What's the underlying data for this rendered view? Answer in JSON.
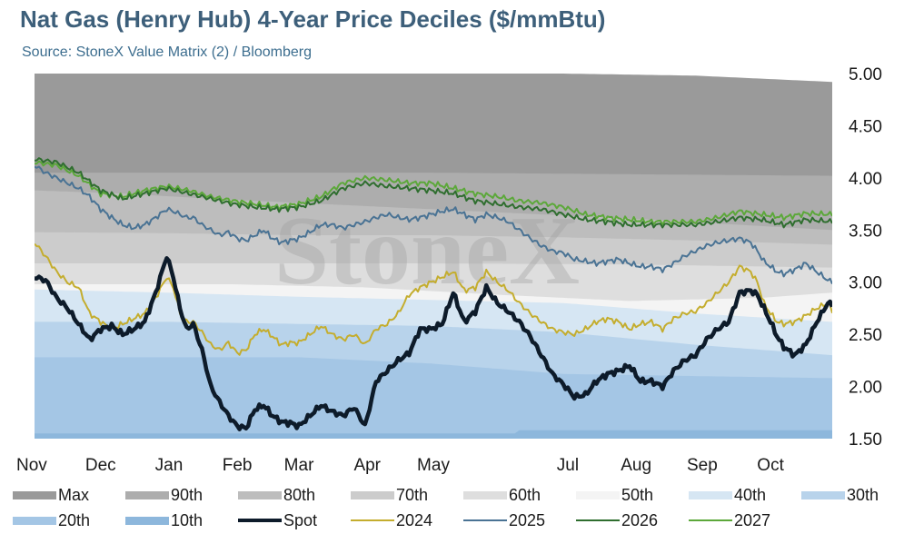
{
  "title": "Nat Gas (Henry Hub) 4-Year Price Deciles ($/mmBtu)",
  "subtitle": "Source: StoneX Value Matrix (2) / Bloomberg",
  "watermark": "StoneX",
  "chart_data": {
    "type": "area",
    "x_type": "day-of-season",
    "categories": [
      "Nov",
      "Dec",
      "Jan",
      "Feb",
      "Mar",
      "Apr",
      "May",
      "Jul",
      "Aug",
      "Sep",
      "Oct"
    ],
    "ylim": [
      1.5,
      5.0
    ],
    "yticks": [
      "5.00",
      "4.50",
      "4.00",
      "3.50",
      "3.00",
      "2.50",
      "2.00",
      "1.50"
    ],
    "y_axis_side": "right",
    "grid": false,
    "legend_position": "bottom",
    "x_days": [
      0,
      30,
      61,
      92,
      120,
      151,
      181,
      242,
      273,
      303,
      334
    ],
    "deciles": [
      {
        "name": "Max",
        "color": "#9a9a9a",
        "x": [
          0,
          60,
          120,
          180,
          240,
          300,
          362
        ],
        "values": [
          5.0,
          5.0,
          5.0,
          5.0,
          5.0,
          4.98,
          4.92
        ]
      },
      {
        "name": "90th",
        "color": "#adadad",
        "x": [
          0,
          60,
          120,
          180,
          240,
          300,
          362
        ],
        "values": [
          4.05,
          4.05,
          4.05,
          4.05,
          4.04,
          4.03,
          4.02
        ]
      },
      {
        "name": "80th",
        "color": "#bdbdbd",
        "x": [
          0,
          40,
          80,
          120,
          160,
          200,
          240,
          280,
          320,
          362
        ],
        "values": [
          3.88,
          3.85,
          3.8,
          3.76,
          3.72,
          3.68,
          3.64,
          3.6,
          3.55,
          3.5
        ]
      },
      {
        "name": "70th",
        "color": "#cccccc",
        "x": [
          0,
          60,
          120,
          180,
          240,
          300,
          362
        ],
        "values": [
          3.48,
          3.47,
          3.45,
          3.45,
          3.43,
          3.4,
          3.36
        ]
      },
      {
        "name": "60th",
        "color": "#dedede",
        "x": [
          0,
          90,
          180,
          270,
          362
        ],
        "values": [
          3.18,
          3.18,
          3.18,
          3.17,
          3.14
        ]
      },
      {
        "name": "50th",
        "color": "#f4f4f4",
        "x": [
          0,
          90,
          150,
          210,
          270,
          330,
          362
        ],
        "values": [
          2.98,
          2.98,
          2.95,
          2.88,
          2.82,
          2.85,
          2.9
        ]
      },
      {
        "name": "40th",
        "color": "#d6e6f3",
        "x": [
          0,
          60,
          120,
          180,
          240,
          300,
          362
        ],
        "values": [
          2.93,
          2.9,
          2.86,
          2.83,
          2.8,
          2.7,
          2.62
        ]
      },
      {
        "name": "30th",
        "color": "#b8d3eb",
        "x": [
          0,
          60,
          120,
          180,
          240,
          300,
          362
        ],
        "values": [
          2.62,
          2.62,
          2.6,
          2.58,
          2.52,
          2.4,
          2.3
        ]
      },
      {
        "name": "20th",
        "color": "#a4c6e5",
        "x": [
          0,
          60,
          120,
          180,
          240,
          300,
          362
        ],
        "values": [
          2.28,
          2.28,
          2.28,
          2.22,
          2.12,
          2.1,
          2.08
        ]
      },
      {
        "name": "10th",
        "color": "#8db7dc",
        "x": [
          0,
          120,
          200,
          218,
          220,
          362
        ],
        "values": [
          1.55,
          1.55,
          1.55,
          1.55,
          1.58,
          1.58
        ]
      }
    ],
    "lines": [
      {
        "name": "Spot",
        "color": "#0d1b2a",
        "width": 4.5,
        "x": [
          0,
          5,
          10,
          15,
          20,
          25,
          30,
          35,
          40,
          45,
          50,
          55,
          60,
          63,
          66,
          69,
          72,
          76,
          80,
          84,
          88,
          92,
          96,
          100,
          104,
          108,
          112,
          116,
          120,
          125,
          130,
          135,
          140,
          145,
          150,
          155,
          160,
          165,
          170,
          175,
          180,
          185,
          190,
          195,
          200,
          205,
          210,
          215,
          220,
          225,
          230,
          235,
          240,
          245,
          250,
          255,
          260,
          265,
          270,
          275,
          280,
          285,
          290,
          295,
          300,
          305,
          310,
          315,
          320,
          325,
          328,
          331,
          334,
          337,
          340,
          345,
          350,
          355,
          360,
          362
        ],
        "values": [
          3.05,
          3.02,
          2.85,
          2.75,
          2.6,
          2.45,
          2.55,
          2.58,
          2.5,
          2.55,
          2.62,
          2.9,
          3.25,
          3.05,
          2.75,
          2.55,
          2.6,
          2.35,
          2.0,
          1.85,
          1.72,
          1.62,
          1.6,
          1.78,
          1.82,
          1.72,
          1.66,
          1.65,
          1.62,
          1.72,
          1.82,
          1.76,
          1.72,
          1.8,
          1.62,
          2.05,
          2.15,
          2.25,
          2.32,
          2.55,
          2.55,
          2.6,
          2.9,
          2.62,
          2.72,
          2.95,
          2.8,
          2.72,
          2.62,
          2.48,
          2.3,
          2.12,
          2.02,
          1.9,
          1.92,
          2.05,
          2.12,
          2.15,
          2.2,
          2.05,
          2.05,
          2.0,
          2.15,
          2.25,
          2.3,
          2.45,
          2.55,
          2.62,
          2.9,
          2.92,
          2.88,
          2.75,
          2.62,
          2.48,
          2.38,
          2.3,
          2.4,
          2.62,
          2.8,
          2.78
        ]
      },
      {
        "name": "2024",
        "color": "#c4ad2e",
        "width": 2,
        "x": [
          0,
          5,
          10,
          15,
          20,
          25,
          30,
          35,
          40,
          45,
          50,
          55,
          60,
          63,
          66,
          69,
          72,
          76,
          80,
          84,
          88,
          92,
          96,
          100,
          104,
          108,
          112,
          116,
          120,
          125,
          130,
          135,
          140,
          145,
          150,
          155,
          160,
          165,
          170,
          175,
          180,
          185,
          190,
          195,
          200,
          205,
          210,
          215,
          220,
          225,
          230,
          235,
          240,
          245,
          250,
          255,
          260,
          265,
          270,
          275,
          280,
          285,
          290,
          295,
          300,
          305,
          310,
          315,
          320,
          325,
          328,
          331,
          334,
          337,
          340,
          345,
          350,
          355,
          360,
          362
        ],
        "values": [
          3.38,
          3.25,
          3.1,
          3.0,
          2.95,
          2.7,
          2.62,
          2.55,
          2.6,
          2.65,
          2.7,
          2.85,
          3.05,
          2.95,
          2.7,
          2.62,
          2.62,
          2.52,
          2.4,
          2.35,
          2.42,
          2.32,
          2.35,
          2.5,
          2.55,
          2.48,
          2.4,
          2.42,
          2.42,
          2.5,
          2.58,
          2.5,
          2.45,
          2.5,
          2.4,
          2.55,
          2.6,
          2.7,
          2.88,
          2.95,
          3.0,
          3.05,
          3.1,
          2.92,
          2.95,
          3.1,
          3.0,
          2.92,
          2.8,
          2.7,
          2.62,
          2.55,
          2.52,
          2.5,
          2.55,
          2.62,
          2.65,
          2.62,
          2.55,
          2.6,
          2.62,
          2.55,
          2.65,
          2.7,
          2.72,
          2.8,
          2.9,
          3.0,
          3.15,
          3.1,
          3.0,
          2.8,
          2.7,
          2.62,
          2.6,
          2.62,
          2.68,
          2.75,
          2.8,
          2.72
        ]
      },
      {
        "name": "2025",
        "color": "#4a7394",
        "width": 2,
        "x": [
          0,
          5,
          10,
          15,
          20,
          25,
          30,
          35,
          40,
          45,
          50,
          55,
          60,
          63,
          66,
          69,
          72,
          76,
          80,
          84,
          88,
          92,
          96,
          100,
          104,
          108,
          112,
          116,
          120,
          125,
          130,
          135,
          140,
          145,
          150,
          155,
          160,
          165,
          170,
          175,
          180,
          185,
          190,
          195,
          200,
          205,
          210,
          215,
          220,
          225,
          230,
          235,
          240,
          245,
          250,
          255,
          260,
          265,
          270,
          275,
          280,
          285,
          290,
          295,
          300,
          305,
          310,
          315,
          320,
          325,
          328,
          331,
          334,
          337,
          340,
          345,
          350,
          355,
          360,
          362
        ],
        "values": [
          4.12,
          4.05,
          4.0,
          3.95,
          3.9,
          3.82,
          3.7,
          3.62,
          3.55,
          3.52,
          3.55,
          3.62,
          3.7,
          3.68,
          3.65,
          3.62,
          3.62,
          3.55,
          3.5,
          3.45,
          3.48,
          3.42,
          3.4,
          3.45,
          3.5,
          3.42,
          3.38,
          3.4,
          3.42,
          3.48,
          3.55,
          3.55,
          3.52,
          3.55,
          3.58,
          3.62,
          3.65,
          3.62,
          3.6,
          3.62,
          3.65,
          3.68,
          3.7,
          3.65,
          3.6,
          3.65,
          3.62,
          3.58,
          3.5,
          3.42,
          3.35,
          3.3,
          3.28,
          3.22,
          3.2,
          3.18,
          3.2,
          3.22,
          3.18,
          3.15,
          3.15,
          3.12,
          3.18,
          3.25,
          3.3,
          3.35,
          3.38,
          3.4,
          3.42,
          3.38,
          3.3,
          3.2,
          3.15,
          3.1,
          3.08,
          3.12,
          3.18,
          3.1,
          3.02,
          3.0
        ]
      },
      {
        "name": "2026",
        "color": "#2f6e2f",
        "width": 2,
        "x": [
          0,
          10,
          20,
          30,
          40,
          50,
          60,
          70,
          80,
          90,
          100,
          110,
          120,
          130,
          140,
          150,
          160,
          170,
          180,
          190,
          200,
          210,
          220,
          230,
          240,
          250,
          260,
          270,
          280,
          290,
          300,
          310,
          320,
          330,
          340,
          350,
          362
        ],
        "values": [
          4.18,
          4.15,
          4.05,
          3.88,
          3.8,
          3.85,
          3.9,
          3.85,
          3.8,
          3.75,
          3.72,
          3.7,
          3.72,
          3.78,
          3.9,
          3.95,
          3.92,
          3.9,
          3.88,
          3.85,
          3.78,
          3.75,
          3.72,
          3.7,
          3.65,
          3.6,
          3.58,
          3.55,
          3.55,
          3.55,
          3.55,
          3.58,
          3.62,
          3.6,
          3.55,
          3.6,
          3.58
        ]
      },
      {
        "name": "2027",
        "color": "#5ca83a",
        "width": 2,
        "x": [
          0,
          10,
          20,
          30,
          40,
          50,
          60,
          70,
          80,
          90,
          100,
          110,
          120,
          130,
          140,
          150,
          160,
          170,
          180,
          190,
          200,
          210,
          220,
          230,
          240,
          250,
          260,
          270,
          280,
          290,
          300,
          310,
          320,
          330,
          340,
          350,
          362
        ],
        "values": [
          4.15,
          4.12,
          4.02,
          3.85,
          3.82,
          3.88,
          3.92,
          3.88,
          3.82,
          3.78,
          3.75,
          3.72,
          3.75,
          3.82,
          3.95,
          4.0,
          3.98,
          3.95,
          3.95,
          3.9,
          3.85,
          3.82,
          3.78,
          3.76,
          3.72,
          3.65,
          3.62,
          3.6,
          3.58,
          3.58,
          3.58,
          3.62,
          3.68,
          3.65,
          3.62,
          3.66,
          3.65
        ]
      }
    ]
  }
}
